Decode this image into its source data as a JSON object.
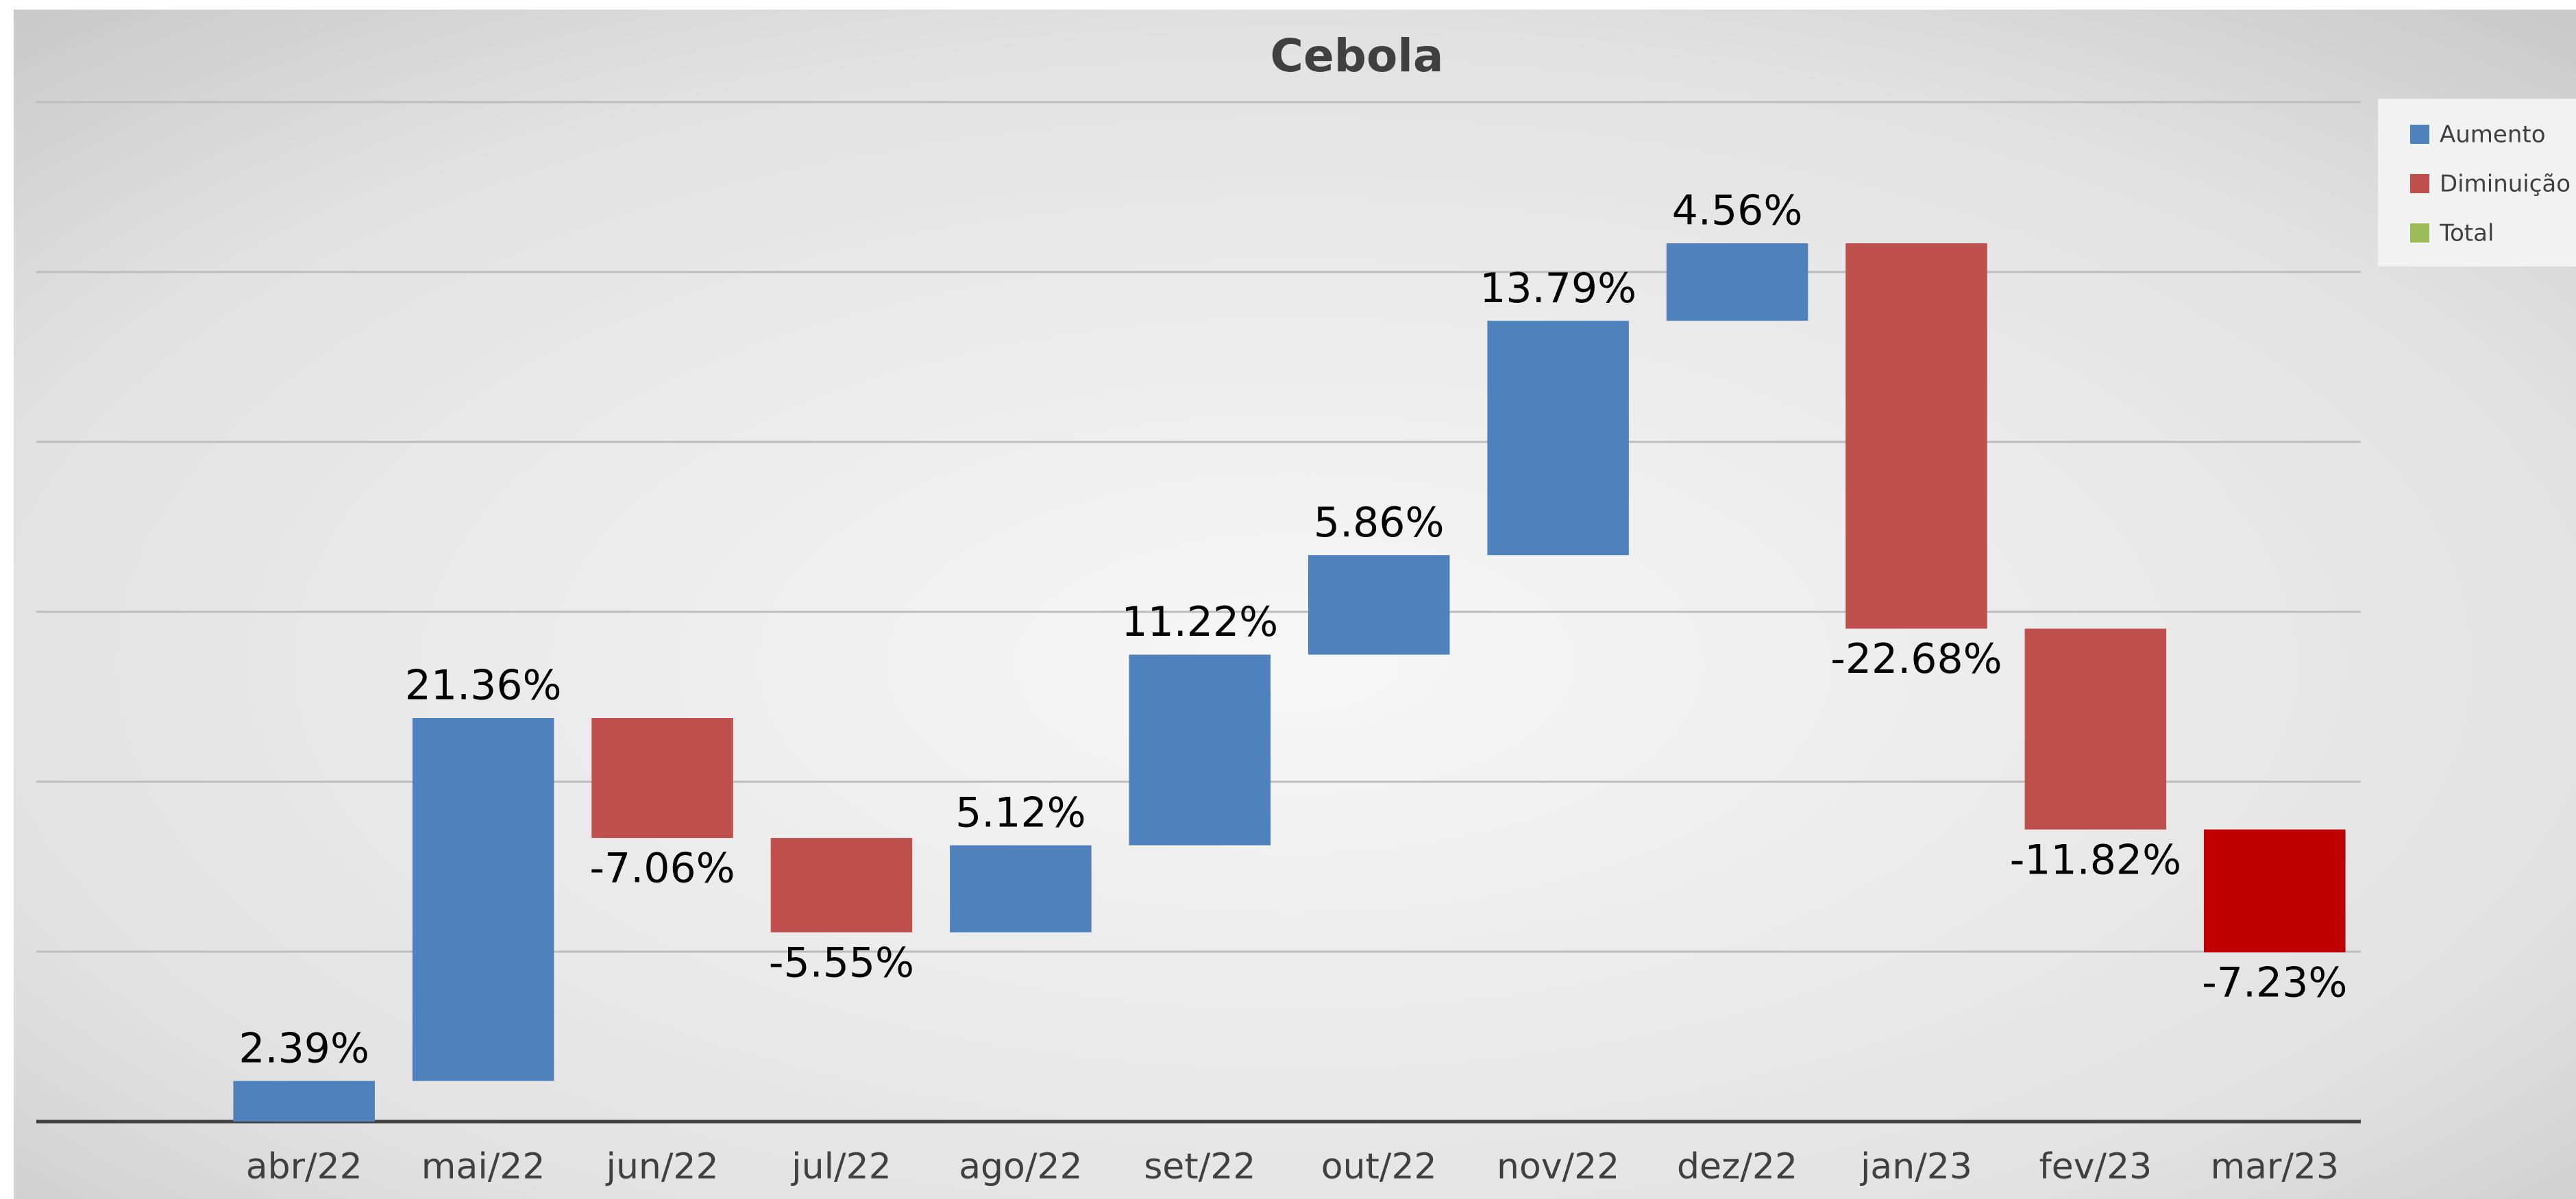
{
  "chart_data": {
    "type": "waterfall",
    "title": "Cebola",
    "categories": [
      "abr/22",
      "mai/22",
      "jun/22",
      "jul/22",
      "ago/22",
      "set/22",
      "out/22",
      "nov/22",
      "dez/22",
      "jan/23",
      "fev/23",
      "mar/23"
    ],
    "values": [
      2.39,
      21.36,
      -7.06,
      -5.55,
      5.12,
      11.22,
      5.86,
      13.79,
      4.56,
      -22.68,
      -11.82,
      -7.23
    ],
    "value_labels": [
      "2.39%",
      "21.36%",
      "-7.06%",
      "-5.55%",
      "5.12%",
      "11.22%",
      "5.86%",
      "13.79%",
      "4.56%",
      "-22.68%",
      "-11.82%",
      "-7.23%"
    ],
    "bar_colors": [
      "#4f81bd",
      "#4f81bd",
      "#c0504d",
      "#c0504d",
      "#4f81bd",
      "#4f81bd",
      "#4f81bd",
      "#4f81bd",
      "#4f81bd",
      "#c0504d",
      "#c0504d",
      "#c00000"
    ],
    "legend": [
      {
        "name": "Aumento",
        "color": "#4f81bd"
      },
      {
        "name": "Diminuição",
        "color": "#c0504d"
      },
      {
        "name": "Total",
        "color": "#9bbb59"
      }
    ],
    "ylim": [
      0,
      60
    ],
    "yticks": [
      0,
      10,
      20,
      30,
      40,
      50,
      60
    ],
    "grid": true
  }
}
